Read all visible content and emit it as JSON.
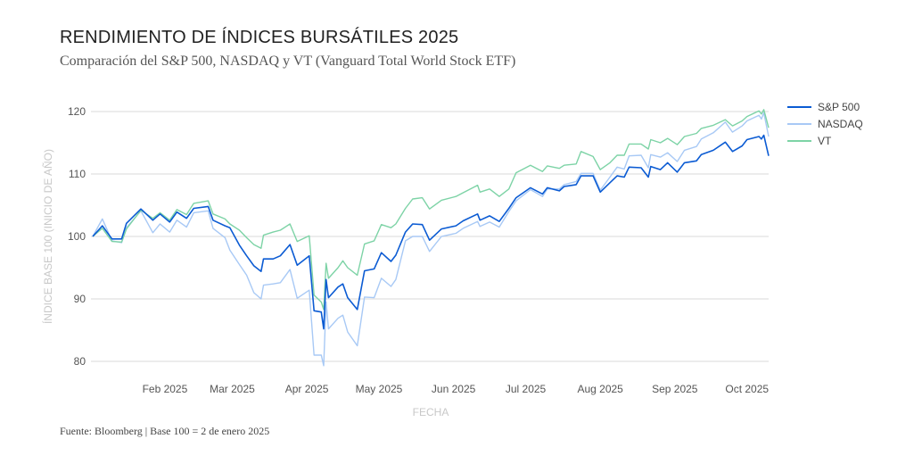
{
  "title": "RENDIMIENTO DE ÍNDICES BURSÁTILES 2025",
  "subtitle": "Comparación del S&P 500, NASDAQ y VT (Vanguard Total World Stock ETF)",
  "source": "Fuente: Bloomberg | Base 100 = 2 de enero 2025",
  "chart_data": {
    "type": "line",
    "title": "RENDIMIENTO DE ÍNDICES BURSÁTILES 2025",
    "xlabel": "FECHA",
    "ylabel": "ÍNDICE BASE 100 (INICIO DE AÑO)",
    "ylim": [
      78,
      122
    ],
    "xlim": [
      "2025-01-02",
      "2025-10-10"
    ],
    "yticks": [
      80,
      90,
      100,
      110,
      120
    ],
    "xticks": [
      {
        "date": "2025-02-01",
        "label": "Feb 2025"
      },
      {
        "date": "2025-03-01",
        "label": "Mar 2025"
      },
      {
        "date": "2025-04-01",
        "label": "Apr 2025"
      },
      {
        "date": "2025-05-01",
        "label": "May 2025"
      },
      {
        "date": "2025-06-01",
        "label": "Jun 2025"
      },
      {
        "date": "2025-07-01",
        "label": "Jul 2025"
      },
      {
        "date": "2025-08-01",
        "label": "Aug 2025"
      },
      {
        "date": "2025-09-01",
        "label": "Sep 2025"
      },
      {
        "date": "2025-10-01",
        "label": "Oct 2025"
      }
    ],
    "grid": true,
    "legend_position": "top-right",
    "x": [
      "2025-01-02",
      "2025-01-06",
      "2025-01-10",
      "2025-01-14",
      "2025-01-16",
      "2025-01-22",
      "2025-01-27",
      "2025-01-30",
      "2025-02-03",
      "2025-02-06",
      "2025-02-10",
      "2025-02-13",
      "2025-02-19",
      "2025-02-21",
      "2025-02-26",
      "2025-02-28",
      "2025-03-04",
      "2025-03-07",
      "2025-03-10",
      "2025-03-13",
      "2025-03-14",
      "2025-03-18",
      "2025-03-21",
      "2025-03-25",
      "2025-03-28",
      "2025-04-02",
      "2025-04-04",
      "2025-04-07",
      "2025-04-08",
      "2025-04-09",
      "2025-04-10",
      "2025-04-14",
      "2025-04-16",
      "2025-04-18",
      "2025-04-22",
      "2025-04-25",
      "2025-04-29",
      "2025-05-02",
      "2025-05-06",
      "2025-05-08",
      "2025-05-12",
      "2025-05-15",
      "2025-05-19",
      "2025-05-22",
      "2025-05-27",
      "2025-06-02",
      "2025-06-05",
      "2025-06-11",
      "2025-06-12",
      "2025-06-16",
      "2025-06-20",
      "2025-06-24",
      "2025-06-27",
      "2025-07-03",
      "2025-07-08",
      "2025-07-10",
      "2025-07-15",
      "2025-07-17",
      "2025-07-22",
      "2025-07-24",
      "2025-07-29",
      "2025-08-01",
      "2025-08-05",
      "2025-08-08",
      "2025-08-11",
      "2025-08-13",
      "2025-08-18",
      "2025-08-21",
      "2025-08-22",
      "2025-08-26",
      "2025-08-29",
      "2025-09-02",
      "2025-09-05",
      "2025-09-10",
      "2025-09-12",
      "2025-09-17",
      "2025-09-22",
      "2025-09-25",
      "2025-09-29",
      "2025-10-01",
      "2025-10-06",
      "2025-10-07",
      "2025-10-08",
      "2025-10-10"
    ],
    "series": [
      {
        "name": "S&P 500",
        "color": "#0b5bd3",
        "values": [
          100,
          101.7,
          99.6,
          99.6,
          102.1,
          104.4,
          102.6,
          103.6,
          102.3,
          103.9,
          102.9,
          104.5,
          104.8,
          102.6,
          101.7,
          101.4,
          98.6,
          96.9,
          95.3,
          94.4,
          96.4,
          96.4,
          96.9,
          98.7,
          95.4,
          96.9,
          88.1,
          87.9,
          85.2,
          93.1,
          90.2,
          91.9,
          92.4,
          90.2,
          88.3,
          94.5,
          94.8,
          97.4,
          96.0,
          97.0,
          100.7,
          102.0,
          101.9,
          99.4,
          101.2,
          101.7,
          102.5,
          103.6,
          102.6,
          103.3,
          102.4,
          104.5,
          106.2,
          107.8,
          106.8,
          107.8,
          107.3,
          108.0,
          108.3,
          109.7,
          109.7,
          107.1,
          108.6,
          109.7,
          109.5,
          111.1,
          111.0,
          109.5,
          111.2,
          110.7,
          111.8,
          110.3,
          111.8,
          112.1,
          113.1,
          113.8,
          115.1,
          113.6,
          114.5,
          115.5,
          116.0,
          115.6,
          116.2,
          112.9
        ]
      },
      {
        "name": "NASDAQ",
        "color": "#a8c9f5",
        "values": [
          100,
          102.8,
          99.3,
          99.0,
          101.4,
          104.1,
          100.6,
          102.0,
          100.7,
          102.6,
          101.5,
          103.8,
          104.1,
          101.3,
          99.8,
          97.8,
          95.5,
          93.8,
          91.0,
          90.0,
          92.2,
          92.4,
          92.6,
          94.7,
          90.1,
          91.4,
          81.0,
          81.0,
          79.3,
          89.5,
          85.2,
          86.9,
          87.4,
          84.7,
          82.5,
          90.3,
          90.2,
          93.3,
          92.0,
          93.1,
          99.3,
          100.0,
          100.0,
          97.6,
          100.0,
          100.5,
          101.3,
          102.4,
          101.6,
          102.3,
          101.5,
          104.0,
          105.7,
          107.5,
          106.4,
          107.6,
          107.6,
          108.3,
          108.8,
          110.1,
          110.1,
          107.4,
          109.5,
          111.1,
          110.8,
          112.9,
          113.0,
          111.0,
          113.1,
          112.7,
          113.4,
          112.0,
          113.8,
          114.4,
          115.6,
          116.6,
          118.3,
          116.7,
          117.7,
          118.5,
          119.4,
          118.8,
          119.8,
          116.0
        ]
      },
      {
        "name": "VT",
        "color": "#7dd3a6",
        "values": [
          100,
          101.3,
          99.2,
          99.1,
          101.2,
          104.2,
          102.9,
          103.8,
          102.6,
          104.3,
          103.5,
          105.3,
          105.7,
          103.6,
          102.8,
          102.0,
          101.0,
          99.8,
          98.7,
          98.1,
          100.2,
          100.7,
          101.0,
          102.0,
          99.2,
          100.1,
          90.6,
          89.5,
          88.3,
          95.7,
          93.3,
          95.0,
          96.1,
          95.0,
          93.8,
          98.8,
          99.3,
          101.9,
          101.4,
          102.0,
          104.5,
          106.0,
          106.2,
          104.4,
          105.8,
          106.4,
          107.0,
          108.2,
          107.1,
          107.6,
          106.4,
          107.6,
          110.2,
          111.4,
          110.4,
          111.3,
          110.9,
          111.4,
          111.6,
          113.6,
          112.8,
          110.7,
          111.8,
          113.0,
          113.0,
          114.8,
          114.8,
          114.0,
          115.5,
          115.0,
          115.7,
          114.7,
          116.0,
          116.5,
          117.3,
          117.8,
          118.7,
          117.7,
          118.5,
          119.2,
          120.1,
          119.6,
          120.3,
          117.4
        ]
      }
    ]
  }
}
